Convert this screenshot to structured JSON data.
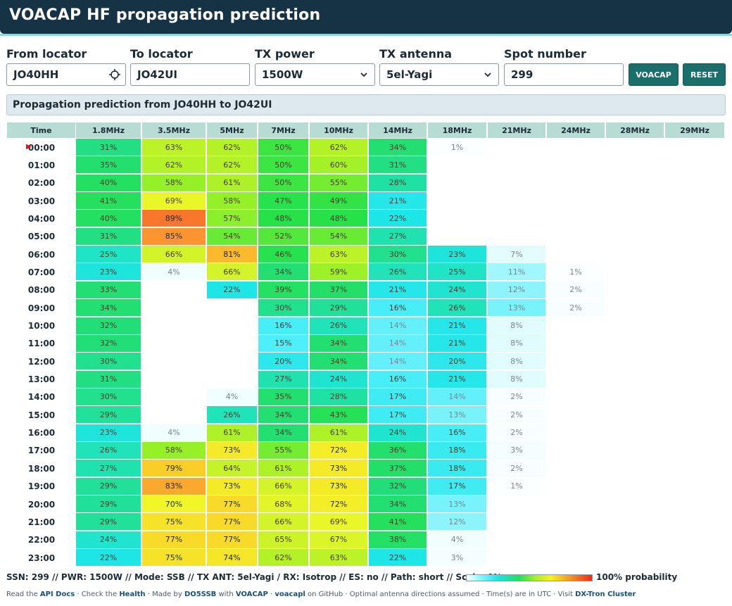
{
  "header": {
    "title": "VOACAP HF propagation prediction"
  },
  "form": {
    "from_label": "From locator",
    "from_value": "JO40HH",
    "to_label": "To locator",
    "to_value": "JO42UI",
    "power_label": "TX power",
    "power_value": "1500W",
    "antenna_label": "TX antenna",
    "antenna_value": "5el-Yagi",
    "spot_label": "Spot number",
    "spot_value": "299",
    "voacap_button": "VOACAP",
    "reset_button": "RESET"
  },
  "banner": "Propagation prediction from JO40HH to JO42UI",
  "table": {
    "time_header": "Time",
    "bands": [
      "1.8MHz",
      "3.5MHz",
      "5MHz",
      "7MHz",
      "10MHz",
      "14MHz",
      "18MHz",
      "21MHz",
      "24MHz",
      "28MHz",
      "29MHz"
    ],
    "current_row": 0,
    "rows": [
      {
        "time": "00:00",
        "values": [
          31,
          63,
          62,
          50,
          62,
          34,
          1,
          null,
          null,
          null,
          null
        ]
      },
      {
        "time": "01:00",
        "values": [
          35,
          62,
          62,
          50,
          60,
          31,
          null,
          null,
          null,
          null,
          null
        ]
      },
      {
        "time": "02:00",
        "values": [
          40,
          58,
          61,
          50,
          55,
          28,
          null,
          null,
          null,
          null,
          null
        ]
      },
      {
        "time": "03:00",
        "values": [
          41,
          69,
          58,
          47,
          49,
          21,
          null,
          null,
          null,
          null,
          null
        ]
      },
      {
        "time": "04:00",
        "values": [
          40,
          89,
          57,
          48,
          48,
          22,
          null,
          null,
          null,
          null,
          null
        ]
      },
      {
        "time": "05:00",
        "values": [
          31,
          85,
          54,
          52,
          54,
          27,
          null,
          null,
          null,
          null,
          null
        ]
      },
      {
        "time": "06:00",
        "values": [
          25,
          66,
          81,
          46,
          63,
          30,
          23,
          7,
          null,
          null,
          null
        ]
      },
      {
        "time": "07:00",
        "values": [
          23,
          4,
          66,
          34,
          59,
          26,
          25,
          11,
          1,
          null,
          null
        ]
      },
      {
        "time": "08:00",
        "values": [
          33,
          null,
          22,
          39,
          37,
          21,
          24,
          12,
          2,
          null,
          null
        ]
      },
      {
        "time": "09:00",
        "values": [
          34,
          null,
          null,
          30,
          29,
          16,
          26,
          13,
          2,
          null,
          null
        ]
      },
      {
        "time": "10:00",
        "values": [
          32,
          null,
          null,
          16,
          26,
          14,
          21,
          8,
          null,
          null,
          null
        ]
      },
      {
        "time": "11:00",
        "values": [
          32,
          null,
          null,
          15,
          34,
          14,
          21,
          8,
          null,
          null,
          null
        ]
      },
      {
        "time": "12:00",
        "values": [
          30,
          null,
          null,
          20,
          34,
          14,
          20,
          8,
          null,
          null,
          null
        ]
      },
      {
        "time": "13:00",
        "values": [
          31,
          null,
          null,
          27,
          24,
          16,
          21,
          8,
          null,
          null,
          null
        ]
      },
      {
        "time": "14:00",
        "values": [
          30,
          null,
          4,
          35,
          28,
          17,
          14,
          2,
          null,
          null,
          null
        ]
      },
      {
        "time": "15:00",
        "values": [
          29,
          null,
          26,
          34,
          43,
          17,
          13,
          2,
          null,
          null,
          null
        ]
      },
      {
        "time": "16:00",
        "values": [
          23,
          4,
          61,
          34,
          61,
          24,
          16,
          2,
          null,
          null,
          null
        ]
      },
      {
        "time": "17:00",
        "values": [
          26,
          58,
          73,
          55,
          72,
          36,
          18,
          3,
          null,
          null,
          null
        ]
      },
      {
        "time": "18:00",
        "values": [
          27,
          79,
          64,
          61,
          73,
          37,
          18,
          2,
          null,
          null,
          null
        ]
      },
      {
        "time": "19:00",
        "values": [
          29,
          83,
          73,
          66,
          73,
          32,
          17,
          1,
          null,
          null,
          null
        ]
      },
      {
        "time": "20:00",
        "values": [
          29,
          70,
          77,
          68,
          72,
          34,
          13,
          null,
          null,
          null,
          null
        ]
      },
      {
        "time": "21:00",
        "values": [
          29,
          75,
          77,
          66,
          69,
          41,
          12,
          null,
          null,
          null,
          null
        ]
      },
      {
        "time": "22:00",
        "values": [
          24,
          77,
          77,
          65,
          67,
          38,
          4,
          null,
          null,
          null,
          null
        ]
      },
      {
        "time": "23:00",
        "values": [
          22,
          75,
          74,
          62,
          63,
          22,
          3,
          null,
          null,
          null,
          null
        ]
      }
    ]
  },
  "legend": {
    "summary": "SSN: 299 // PWR: 1500W // Mode: SSB // TX ANT: 5el-Yagi / RX: Isotrop // ES: no // Path: short // Scale: 0%",
    "end_label": "100% probability"
  },
  "footer": {
    "t1": "Read the ",
    "api_docs": "API Docs",
    "t2": " · Check the ",
    "health": "Health",
    "t3": " · Made by ",
    "author": "DO5SSB",
    "t4": " with ",
    "voacap": "VOACAP",
    "t5": " · ",
    "voacapl": "voacapl",
    "t6": " on GitHub · Optimal antenna directions assumed · Time(s) are in UTC · Visit ",
    "dxtron": "DX-Tron Cluster"
  },
  "colors": {
    "header_bg": "#163346",
    "accent": "#1a6e6b",
    "grid_header": "#b7dcd4",
    "now_marker": "#e0141b"
  }
}
